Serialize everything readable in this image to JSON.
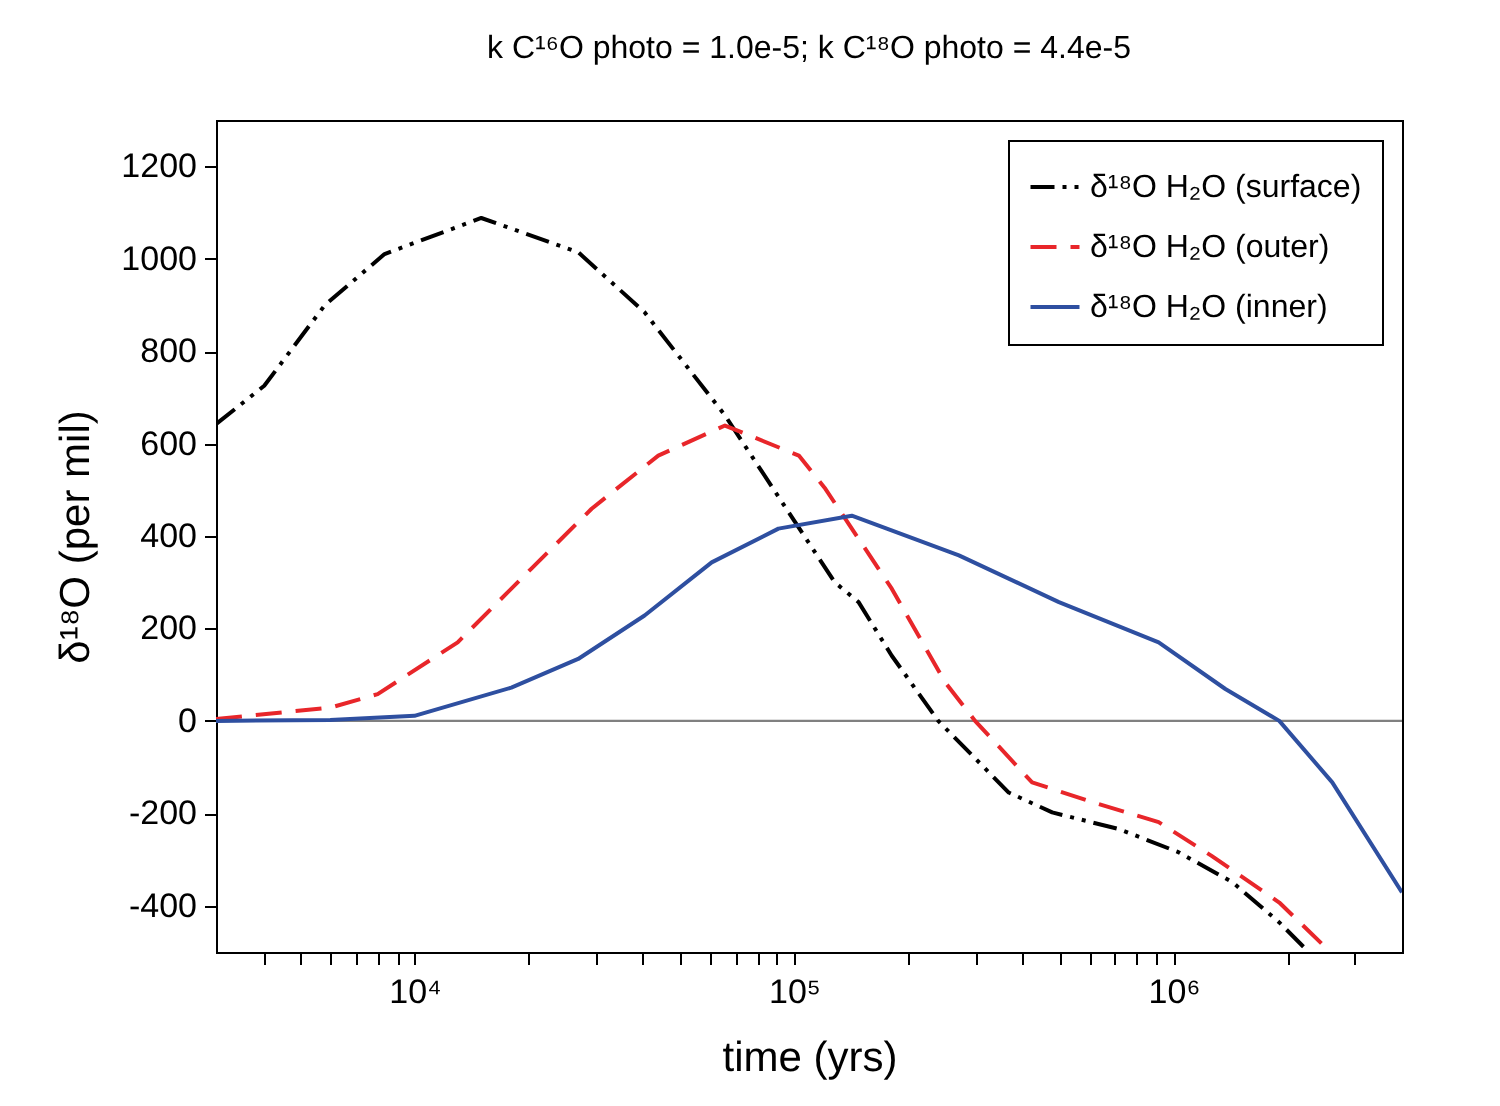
{
  "chart_data": {
    "type": "line",
    "title": "k C¹⁶O photo = 1.0e-5; k C¹⁸O photo = 4.4e-5",
    "xlabel": "time (yrs)",
    "ylabel": "δ¹⁸O (per mil)",
    "log": "x",
    "grid": false,
    "legend": "top right",
    "marker": "none",
    "xlim": [
      3000,
      4000000
    ],
    "ylim": [
      -500,
      1300
    ],
    "xticks": [
      {
        "value": 4000,
        "label": null
      },
      {
        "value": 5000,
        "label": null
      },
      {
        "value": 6000,
        "label": null
      },
      {
        "value": 7000,
        "label": null
      },
      {
        "value": 8000,
        "label": null
      },
      {
        "value": 9000,
        "label": null
      },
      {
        "value": 10000,
        "label": "10⁴"
      },
      {
        "value": 20000,
        "label": null
      },
      {
        "value": 30000,
        "label": null
      },
      {
        "value": 40000,
        "label": null
      },
      {
        "value": 50000,
        "label": null
      },
      {
        "value": 60000,
        "label": null
      },
      {
        "value": 70000,
        "label": null
      },
      {
        "value": 80000,
        "label": null
      },
      {
        "value": 90000,
        "label": null
      },
      {
        "value": 100000,
        "label": "10⁵"
      },
      {
        "value": 200000,
        "label": null
      },
      {
        "value": 300000,
        "label": null
      },
      {
        "value": 400000,
        "label": null
      },
      {
        "value": 500000,
        "label": null
      },
      {
        "value": 600000,
        "label": null
      },
      {
        "value": 700000,
        "label": null
      },
      {
        "value": 800000,
        "label": null
      },
      {
        "value": 900000,
        "label": null
      },
      {
        "value": 1000000,
        "label": "10⁶"
      },
      {
        "value": 2000000,
        "label": null
      },
      {
        "value": 3000000,
        "label": null
      }
    ],
    "yticks": [
      -400,
      -200,
      0,
      200,
      400,
      600,
      800,
      1000,
      1200
    ],
    "ref_lines": [
      {
        "axis": "y",
        "value": 0,
        "color": "#808080"
      }
    ],
    "series": [
      {
        "name": "δ¹⁸O H₂O (surface)",
        "color": "#000000",
        "line_style": "dashdotdot",
        "x": [
          3000,
          4020,
          5800,
          8340,
          15000,
          27000,
          40400,
          65800,
          128000,
          148000,
          181000,
          240000,
          368000,
          479000,
          718000,
          1030000,
          1430000,
          1900000,
          2270000
        ],
        "values": [
          642,
          725,
          899,
          1010,
          1088,
          1014,
          884,
          661,
          300,
          257,
          141,
          0,
          -155,
          -198,
          -234,
          -284,
          -349,
          -436,
          -500
        ]
      },
      {
        "name": "δ¹⁸O H₂O (outer)",
        "color": "#e8262a",
        "line_style": "dashed",
        "x": [
          3000,
          6030,
          8000,
          13000,
          20300,
          29300,
          43900,
          65800,
          103000,
          121000,
          181000,
          250000,
          300000,
          424000,
          635000,
          914000,
          1260000,
          1900000,
          2590000
        ],
        "values": [
          4,
          29,
          58,
          170,
          329,
          459,
          574,
          639,
          574,
          502,
          286,
          84,
          0,
          -133,
          -180,
          -219,
          -292,
          -393,
          -500
        ]
      },
      {
        "name": "δ¹⁸O H₂O (inner)",
        "color": "#2e4fa0",
        "line_style": "solid",
        "x": [
          3000,
          6000,
          10000,
          18000,
          27000,
          40400,
          60700,
          91000,
          142000,
          272000,
          499000,
          914000,
          1370000,
          1900000,
          2620000,
          4000000
        ],
        "values": [
          0,
          2,
          11,
          72,
          134,
          228,
          343,
          416,
          444,
          358,
          257,
          170,
          69,
          0,
          -133,
          -371
        ]
      }
    ]
  }
}
